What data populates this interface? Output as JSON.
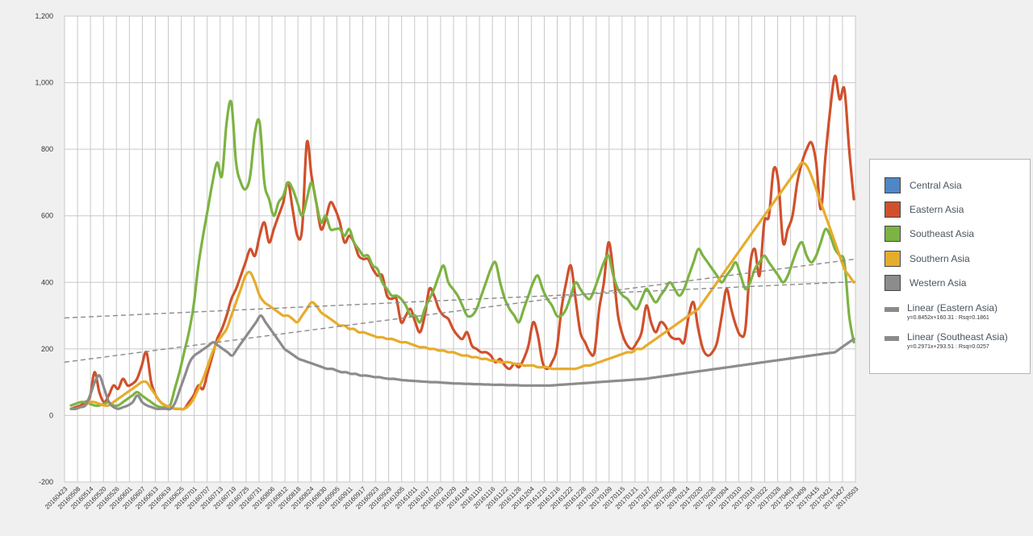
{
  "chart_data": {
    "type": "line",
    "y_axis": {
      "min": -200,
      "max": 1200,
      "step": 200,
      "tick_labels": [
        "-200",
        "0",
        "200",
        "400",
        "600",
        "800",
        "1,000",
        "1,200"
      ]
    },
    "x_ticks": [
      "20160423",
      "20160508",
      "20160514",
      "20160520",
      "20160526",
      "20160601",
      "20160607",
      "20160613",
      "20160619",
      "20160625",
      "20160701",
      "20160707",
      "20160713",
      "20160719",
      "20160725",
      "20160731",
      "20160806",
      "20160812",
      "20160818",
      "20160824",
      "20160830",
      "20160905",
      "20160911",
      "20160917",
      "20160923",
      "20160929",
      "20161005",
      "20161011",
      "20161017",
      "20161023",
      "20161029",
      "20161104",
      "20161110",
      "20161116",
      "20161122",
      "20161128",
      "20161204",
      "20161210",
      "20161216",
      "20161222",
      "20161228",
      "20170103",
      "20170109",
      "20170115",
      "20170121",
      "20170127",
      "20170202",
      "20170208",
      "20170214",
      "20170220",
      "20170226",
      "20170304",
      "20170310",
      "20170316",
      "20170322",
      "20170328",
      "20170403",
      "20170409",
      "20170415",
      "20170421",
      "20170427",
      "20170503"
    ],
    "grid": true,
    "legend_position": "right",
    "series": [
      {
        "name": "Central Asia",
        "color": "#4f86c6",
        "values": []
      },
      {
        "name": "Eastern Asia",
        "color": "#d0502c",
        "values": [
          20,
          25,
          30,
          40,
          55,
          130,
          70,
          40,
          60,
          90,
          80,
          110,
          90,
          95,
          110,
          150,
          190,
          100,
          60,
          40,
          30,
          25,
          20,
          20,
          20,
          40,
          60,
          90,
          80,
          130,
          180,
          230,
          260,
          300,
          350,
          380,
          420,
          460,
          500,
          480,
          540,
          580,
          520,
          560,
          600,
          640,
          700,
          620,
          540,
          560,
          820,
          720,
          640,
          560,
          590,
          640,
          620,
          580,
          520,
          540,
          520,
          480,
          470,
          470,
          440,
          420,
          420,
          360,
          350,
          350,
          280,
          300,
          320,
          280,
          250,
          300,
          380,
          360,
          320,
          300,
          290,
          260,
          240,
          230,
          250,
          210,
          200,
          190,
          190,
          180,
          160,
          170,
          150,
          140,
          155,
          145,
          170,
          210,
          280,
          240,
          160,
          140,
          160,
          200,
          320,
          400,
          450,
          350,
          250,
          220,
          190,
          190,
          320,
          400,
          520,
          430,
          300,
          240,
          210,
          200,
          220,
          250,
          330,
          280,
          250,
          280,
          270,
          240,
          230,
          230,
          220,
          300,
          340,
          260,
          200,
          180,
          190,
          220,
          300,
          380,
          320,
          270,
          240,
          260,
          450,
          500,
          420,
          580,
          600,
          740,
          700,
          520,
          560,
          600,
          700,
          760,
          800,
          820,
          760,
          620,
          780,
          920,
          1020,
          950,
          980,
          800,
          650
        ]
      },
      {
        "name": "Southeast Asia",
        "color": "#7cb342",
        "values": [
          30,
          35,
          40,
          40,
          35,
          30,
          30,
          35,
          40,
          30,
          30,
          40,
          50,
          60,
          70,
          60,
          50,
          40,
          30,
          25,
          25,
          30,
          80,
          130,
          190,
          250,
          330,
          450,
          540,
          620,
          700,
          760,
          720,
          880,
          940,
          760,
          700,
          680,
          720,
          850,
          880,
          700,
          650,
          600,
          640,
          660,
          700,
          680,
          640,
          600,
          650,
          700,
          640,
          580,
          600,
          560,
          560,
          560,
          540,
          560,
          520,
          500,
          480,
          480,
          450,
          440,
          400,
          380,
          360,
          360,
          350,
          330,
          300,
          300,
          280,
          320,
          350,
          380,
          420,
          450,
          400,
          380,
          360,
          330,
          300,
          300,
          320,
          360,
          400,
          440,
          460,
          400,
          350,
          320,
          300,
          280,
          320,
          360,
          400,
          420,
          380,
          350,
          330,
          300,
          300,
          320,
          360,
          400,
          380,
          360,
          350,
          380,
          420,
          460,
          480,
          420,
          380,
          360,
          350,
          330,
          320,
          350,
          380,
          360,
          340,
          360,
          380,
          400,
          380,
          360,
          380,
          420,
          460,
          500,
          480,
          460,
          440,
          420,
          400,
          420,
          440,
          460,
          420,
          380,
          400,
          440,
          460,
          480,
          460,
          440,
          420,
          400,
          420,
          460,
          500,
          520,
          480,
          460,
          480,
          520,
          560,
          540,
          500,
          480,
          460,
          300,
          220
        ]
      },
      {
        "name": "Southern Asia",
        "color": "#e6ac2c",
        "values": [
          20,
          20,
          25,
          30,
          40,
          40,
          35,
          30,
          30,
          40,
          50,
          60,
          70,
          80,
          90,
          100,
          100,
          80,
          60,
          40,
          30,
          25,
          20,
          20,
          20,
          30,
          50,
          80,
          110,
          150,
          190,
          220,
          240,
          260,
          300,
          340,
          380,
          420,
          430,
          400,
          360,
          340,
          330,
          320,
          310,
          300,
          300,
          290,
          280,
          300,
          320,
          340,
          330,
          310,
          300,
          290,
          280,
          270,
          270,
          260,
          260,
          250,
          250,
          245,
          240,
          235,
          235,
          230,
          230,
          225,
          220,
          220,
          215,
          210,
          205,
          205,
          200,
          200,
          195,
          195,
          190,
          190,
          185,
          180,
          180,
          175,
          175,
          170,
          170,
          165,
          165,
          160,
          160,
          160,
          155,
          155,
          150,
          150,
          150,
          145,
          145,
          145,
          140,
          140,
          140,
          140,
          140,
          140,
          145,
          150,
          150,
          155,
          160,
          165,
          170,
          175,
          180,
          185,
          190,
          190,
          200,
          200,
          210,
          220,
          230,
          240,
          250,
          260,
          270,
          280,
          290,
          300,
          310,
          320,
          340,
          360,
          380,
          400,
          420,
          440,
          460,
          480,
          500,
          520,
          540,
          560,
          580,
          600,
          620,
          640,
          660,
          680,
          700,
          720,
          740,
          760,
          750,
          720,
          680,
          640,
          600,
          560,
          520,
          480,
          440,
          420,
          400
        ]
      },
      {
        "name": "Western Asia",
        "color": "#8c8c8c",
        "values": [
          20,
          20,
          25,
          30,
          60,
          100,
          120,
          80,
          40,
          25,
          20,
          25,
          30,
          40,
          60,
          40,
          30,
          25,
          20,
          20,
          20,
          20,
          40,
          80,
          120,
          160,
          180,
          190,
          200,
          210,
          220,
          210,
          200,
          190,
          180,
          200,
          220,
          240,
          260,
          280,
          300,
          280,
          260,
          240,
          220,
          200,
          190,
          180,
          170,
          165,
          160,
          155,
          150,
          145,
          140,
          140,
          135,
          130,
          130,
          125,
          125,
          120,
          120,
          118,
          115,
          115,
          112,
          110,
          110,
          108,
          106,
          105,
          104,
          103,
          102,
          101,
          100,
          100,
          99,
          98,
          97,
          96,
          96,
          95,
          95,
          94,
          94,
          93,
          93,
          92,
          92,
          92,
          91,
          91,
          91,
          90,
          90,
          90,
          90,
          90,
          90,
          90,
          91,
          92,
          93,
          94,
          95,
          96,
          97,
          98,
          99,
          100,
          101,
          102,
          103,
          104,
          105,
          106,
          107,
          108,
          109,
          110,
          112,
          114,
          116,
          118,
          120,
          122,
          124,
          126,
          128,
          130,
          132,
          134,
          136,
          138,
          140,
          142,
          144,
          146,
          148,
          150,
          152,
          154,
          156,
          158,
          160,
          162,
          164,
          166,
          168,
          170,
          172,
          174,
          176,
          178,
          180,
          182,
          184,
          186,
          188,
          190,
          200,
          210,
          220,
          230
        ]
      }
    ],
    "trendlines": [
      {
        "name": "Linear (Eastern Asia)",
        "equation": "y=0.8452x+160.31 : Rsq=0.1861",
        "color": "#8a8a8a",
        "start_value": 160,
        "end_value": 470
      },
      {
        "name": "Linear (Southeast Asia)",
        "equation": "y=0.2971x+293.51 : Rsq=0.0257",
        "color": "#8a8a8a",
        "start_value": 293,
        "end_value": 402
      }
    ]
  }
}
